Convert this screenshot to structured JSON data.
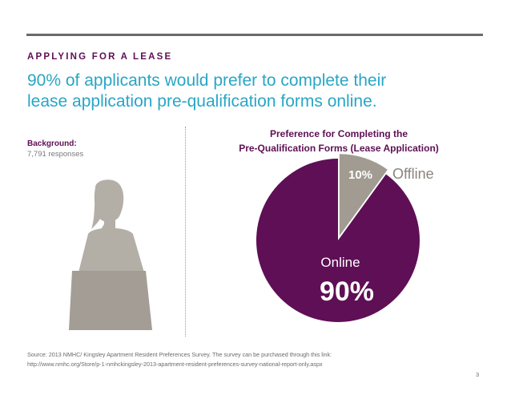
{
  "section_label": "APPLYING FOR A LEASE",
  "headline_line1": "90% of applicants would prefer to complete their",
  "headline_line2": "lease application pre-qualification forms online.",
  "background": {
    "title": "Background:",
    "text": "7,791 responses"
  },
  "chart_data": {
    "type": "pie",
    "title_line1": "Preference for Completing the",
    "title_line2": "Pre-Qualification Forms (Lease Application)",
    "slices": [
      {
        "label": "Offline",
        "value": 10,
        "value_label": "10%",
        "color": "#a19b91"
      },
      {
        "label": "Online",
        "value": 90,
        "value_label": "90%",
        "color": "#5e0f55"
      }
    ]
  },
  "source_line1": "Source: 2013 NMHC/ Kingsley Apartment Resident Preferences Survey. The survey can be purchased through this link:",
  "source_line2": "http://www.nmhc.org/Store/p-1-nmhckingsley-2013-apartment-resident-preferences-survey-national-report-only.aspx",
  "page_number": "3",
  "colors": {
    "brand_purple": "#5e0f55",
    "accent_blue": "#28a6c6",
    "grey": "#a19b91"
  }
}
